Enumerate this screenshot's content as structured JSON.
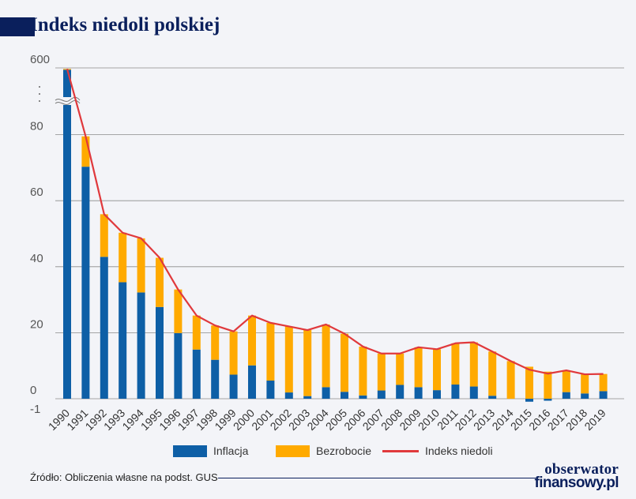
{
  "title": "Indeks niedoli polskiej",
  "source": "Źródło: Obliczenia własne na podst. GUS",
  "logo": {
    "line1": "obserwator",
    "line2": "finansowy.pl"
  },
  "colors": {
    "inflacja": "#0e5fa6",
    "bezrobocie": "#ffaa00",
    "indeks": "#e0393c",
    "brand": "#0a1f5c"
  },
  "chart_data": {
    "type": "bar",
    "stacked": true,
    "axis_break": {
      "between": [
        80,
        600
      ]
    },
    "y_ticks": [
      "600",
      "80",
      "60",
      "40",
      "20",
      "0",
      "-1"
    ],
    "ylim": [
      -1,
      600
    ],
    "grid": true,
    "legend_position": "bottom",
    "categories": [
      "1990",
      "1991",
      "1992",
      "1993",
      "1994",
      "1995",
      "1996",
      "1997",
      "1998",
      "1999",
      "2000",
      "2001",
      "2002",
      "2003",
      "2004",
      "2005",
      "2006",
      "2007",
      "2008",
      "2009",
      "2010",
      "2011",
      "2012",
      "2013",
      "2014",
      "2015",
      "2016",
      "2017",
      "2018",
      "2019"
    ],
    "series": [
      {
        "name": "Inflacja",
        "kind": "bar",
        "values": [
          585.8,
          70.3,
          43.0,
          35.3,
          32.2,
          27.8,
          19.9,
          14.9,
          11.8,
          7.3,
          10.1,
          5.5,
          1.9,
          0.8,
          3.5,
          2.1,
          1.0,
          2.5,
          4.2,
          3.5,
          2.6,
          4.3,
          3.7,
          0.9,
          0.0,
          -0.9,
          -0.6,
          2.0,
          1.6,
          2.3
        ]
      },
      {
        "name": "Bezrobocie",
        "kind": "bar",
        "values": [
          6.5,
          9.2,
          12.9,
          15.0,
          16.4,
          14.9,
          13.2,
          10.3,
          10.4,
          13.1,
          15.1,
          17.5,
          20.0,
          20.0,
          19.0,
          17.6,
          14.8,
          11.2,
          9.5,
          12.1,
          12.4,
          12.5,
          13.4,
          13.4,
          11.4,
          9.7,
          8.2,
          6.6,
          5.8,
          5.2
        ]
      },
      {
        "name": "Indeks niedoli",
        "kind": "line",
        "values": [
          592.3,
          79.5,
          55.9,
          50.3,
          48.6,
          42.7,
          33.1,
          25.2,
          22.2,
          20.4,
          25.2,
          23.0,
          21.9,
          20.8,
          22.5,
          19.7,
          15.8,
          13.7,
          13.7,
          15.6,
          15.0,
          16.8,
          17.1,
          14.3,
          11.4,
          8.8,
          7.6,
          8.6,
          7.4,
          7.5
        ]
      }
    ]
  }
}
